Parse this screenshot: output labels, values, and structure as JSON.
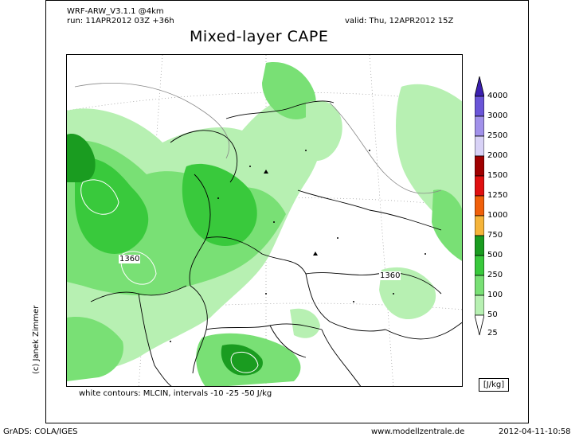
{
  "header": {
    "model": "WRF-ARW_V3.1.1 @4km",
    "run": "run: 11APR2012 03Z +36h",
    "valid": "valid: Thu, 12APR2012 15Z",
    "title": "Mixed-layer CAPE"
  },
  "map": {
    "cin_labels": [
      "1360",
      "1360"
    ],
    "contour_note": "white contours: MLCIN, intervals -10 -25 -50 J/kg"
  },
  "legend": {
    "levels": [
      "4000",
      "3000",
      "2500",
      "2000",
      "1500",
      "1250",
      "1000",
      "750",
      "500",
      "250",
      "100",
      "50",
      "25"
    ],
    "colors": [
      "#3b1fb0",
      "#6a55d8",
      "#a191ea",
      "#d8d2f6",
      "#a00000",
      "#e01010",
      "#f0600a",
      "#f5b43a",
      "#1a9c20",
      "#39c93c",
      "#79e075",
      "#b7f0b2",
      "#ffffff"
    ],
    "unit": "[J/kg]"
  },
  "credit": "(c) Janek Zimmer",
  "footer": {
    "left": "GrADS: COLA/IGES",
    "center": "www.modellzentrale.de",
    "right": "2012-04-11-10:58"
  }
}
